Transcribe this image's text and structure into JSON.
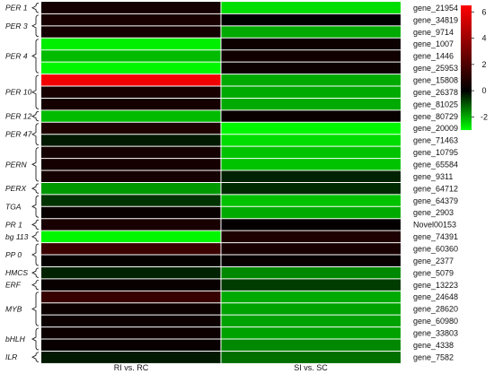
{
  "chart_data": {
    "type": "heatmap",
    "columns": [
      "RI vs. RC",
      "SI vs. SC"
    ],
    "rows": [
      {
        "gene": "gene_21954",
        "values": [
          0.5,
          -2.6
        ]
      },
      {
        "gene": "gene_34819",
        "values": [
          0.6,
          0.0
        ]
      },
      {
        "gene": "gene_9714",
        "values": [
          0.5,
          -2.0
        ]
      },
      {
        "gene": "gene_1007",
        "values": [
          -2.8,
          0.3
        ]
      },
      {
        "gene": "gene_1446",
        "values": [
          -2.2,
          0.4
        ]
      },
      {
        "gene": "gene_25953",
        "values": [
          -2.9,
          0.3
        ]
      },
      {
        "gene": "gene_15808",
        "values": [
          6.2,
          -2.0
        ]
      },
      {
        "gene": "gene_26378",
        "values": [
          0.6,
          -2.0
        ]
      },
      {
        "gene": "gene_81025",
        "values": [
          0.5,
          -2.0
        ]
      },
      {
        "gene": "gene_80729",
        "values": [
          -2.2,
          0.2
        ]
      },
      {
        "gene": "gene_20009",
        "values": [
          0.8,
          -2.9
        ]
      },
      {
        "gene": "gene_71463",
        "values": [
          -0.3,
          -2.6
        ]
      },
      {
        "gene": "gene_10795",
        "values": [
          0.5,
          -2.3
        ]
      },
      {
        "gene": "gene_65584",
        "values": [
          0.5,
          -2.3
        ]
      },
      {
        "gene": "gene_9311",
        "values": [
          0.5,
          -0.4
        ]
      },
      {
        "gene": "gene_64712",
        "values": [
          -1.8,
          -0.5
        ]
      },
      {
        "gene": "gene_64379",
        "values": [
          -0.6,
          -2.3
        ]
      },
      {
        "gene": "gene_2903",
        "values": [
          0.2,
          -2.0
        ]
      },
      {
        "gene": "Novel00153",
        "values": [
          0.6,
          0.1
        ]
      },
      {
        "gene": "gene_74391",
        "values": [
          -2.9,
          0.8
        ]
      },
      {
        "gene": "gene_60360",
        "values": [
          1.5,
          0.6
        ]
      },
      {
        "gene": "gene_2377",
        "values": [
          0.1,
          0.2
        ]
      },
      {
        "gene": "gene_5079",
        "values": [
          -0.4,
          -1.6
        ]
      },
      {
        "gene": "gene_13223",
        "values": [
          0.2,
          -0.7
        ]
      },
      {
        "gene": "gene_24648",
        "values": [
          1.4,
          -2.0
        ]
      },
      {
        "gene": "gene_28620",
        "values": [
          0.3,
          -1.9
        ]
      },
      {
        "gene": "gene_60980",
        "values": [
          0.3,
          -1.9
        ]
      },
      {
        "gene": "gene_33803",
        "values": [
          0.3,
          -1.9
        ]
      },
      {
        "gene": "gene_4338",
        "values": [
          0.2,
          -1.6
        ]
      },
      {
        "gene": "gene_7582",
        "values": [
          -0.3,
          -1.3
        ]
      }
    ],
    "groups": [
      {
        "label": "PER 1",
        "start": 0,
        "end": 0
      },
      {
        "label": "PER 3",
        "start": 1,
        "end": 2
      },
      {
        "label": "PER 4",
        "start": 3,
        "end": 5
      },
      {
        "label": "PER 10",
        "start": 6,
        "end": 8
      },
      {
        "label": "PER 12",
        "start": 9,
        "end": 9
      },
      {
        "label": "PER 47",
        "start": 10,
        "end": 11
      },
      {
        "label": "PERN",
        "start": 12,
        "end": 14
      },
      {
        "label": "PERX",
        "start": 15,
        "end": 15
      },
      {
        "label": "TGA",
        "start": 16,
        "end": 17
      },
      {
        "label": "PR 1",
        "start": 18,
        "end": 18
      },
      {
        "label": "bg 113",
        "start": 19,
        "end": 19
      },
      {
        "label": "PP 0",
        "start": 20,
        "end": 21
      },
      {
        "label": "HMCS",
        "start": 22,
        "end": 22
      },
      {
        "label": "ERF",
        "start": 23,
        "end": 23
      },
      {
        "label": "MYB",
        "start": 24,
        "end": 26
      },
      {
        "label": "bHLH",
        "start": 27,
        "end": 28
      },
      {
        "label": "ILR",
        "start": 29,
        "end": 29
      }
    ],
    "colorbar": {
      "ticks": [
        6,
        4,
        2,
        0,
        -2
      ],
      "range": [
        -3,
        6.5
      ],
      "colors": {
        "low": "#00ff00",
        "mid": "#000000",
        "high": "#ff0000"
      }
    },
    "grid": true
  }
}
